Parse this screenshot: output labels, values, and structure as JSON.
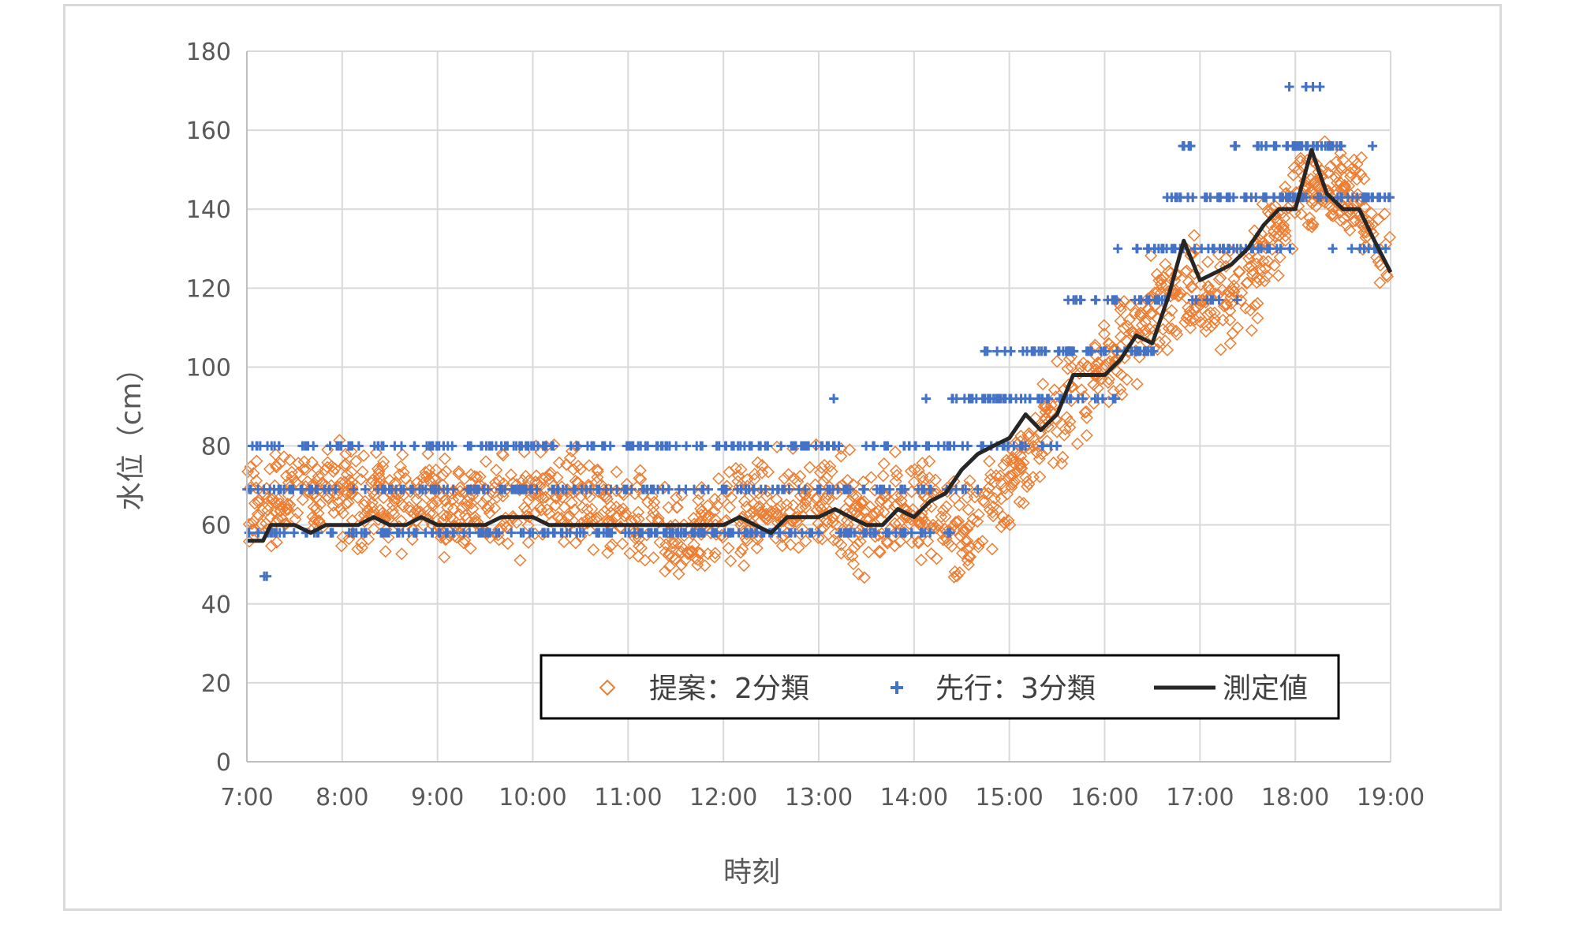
{
  "chart_data": {
    "type": "scatter",
    "title": "",
    "xlabel": "時刻",
    "ylabel": "水位（cm）",
    "x_ticks": [
      "7:00",
      "8:00",
      "9:00",
      "10:00",
      "11:00",
      "12:00",
      "13:00",
      "14:00",
      "15:00",
      "16:00",
      "17:00",
      "18:00",
      "19:00"
    ],
    "y_ticks": [
      "0",
      "20",
      "40",
      "60",
      "80",
      "100",
      "120",
      "140",
      "160",
      "180"
    ],
    "xlim_hours": [
      7,
      19
    ],
    "ylim": [
      0,
      180
    ],
    "grid": true,
    "legend_position": "lower-right",
    "colors": {
      "proposed": "#ed7d31",
      "prior": "#4472c4",
      "measured": "#262626",
      "grid": "#d9d9d9"
    },
    "series": [
      {
        "name": "提案：2分類",
        "marker": "diamond-open",
        "note_values": "dense noisy scatter following measured level",
        "trend_x": [
          7.0,
          7.5,
          8.0,
          8.5,
          9.0,
          9.5,
          10.0,
          10.5,
          11.0,
          11.5,
          12.0,
          12.5,
          13.0,
          13.5,
          14.0,
          14.5,
          15.0,
          15.5,
          16.0,
          16.5,
          17.0,
          17.5,
          18.0,
          18.5,
          19.0
        ],
        "trend_y": [
          66,
          68,
          68,
          66,
          65,
          64,
          66,
          68,
          62,
          55,
          62,
          64,
          66,
          62,
          66,
          55,
          72,
          88,
          100,
          115,
          120,
          120,
          145,
          145,
          128
        ]
      },
      {
        "name": "先行：3分類",
        "marker": "plus",
        "levels": [
          37,
          47,
          58,
          69,
          80,
          92,
          104,
          117,
          130,
          143,
          156,
          171
        ]
      },
      {
        "name": "測定値",
        "marker": "line",
        "x": [
          7.0,
          7.17,
          7.25,
          7.5,
          7.67,
          7.83,
          8.0,
          8.17,
          8.33,
          8.5,
          8.67,
          8.83,
          9.0,
          9.17,
          9.5,
          9.67,
          9.83,
          10.0,
          10.17,
          10.33,
          10.5,
          10.83,
          11.0,
          11.5,
          11.83,
          12.0,
          12.17,
          12.33,
          12.5,
          12.67,
          12.83,
          13.0,
          13.17,
          13.33,
          13.5,
          13.67,
          13.83,
          14.0,
          14.17,
          14.33,
          14.5,
          14.67,
          14.83,
          15.0,
          15.17,
          15.33,
          15.5,
          15.67,
          15.83,
          16.0,
          16.17,
          16.33,
          16.5,
          16.67,
          16.83,
          17.0,
          17.17,
          17.33,
          17.5,
          17.67,
          17.83,
          18.0,
          18.17,
          18.33,
          18.5,
          18.67,
          18.83,
          19.0
        ],
        "y": [
          56,
          56,
          60,
          60,
          58,
          60,
          60,
          60,
          62,
          60,
          60,
          62,
          60,
          60,
          60,
          62,
          62,
          62,
          60,
          60,
          60,
          60,
          60,
          60,
          60,
          60,
          62,
          60,
          58,
          62,
          62,
          62,
          64,
          62,
          60,
          60,
          64,
          62,
          66,
          68,
          74,
          78,
          80,
          82,
          88,
          84,
          88,
          98,
          98,
          98,
          102,
          108,
          106,
          118,
          132,
          122,
          124,
          126,
          130,
          136,
          140,
          140,
          155,
          144,
          140,
          140,
          132,
          124
        ]
      }
    ]
  }
}
